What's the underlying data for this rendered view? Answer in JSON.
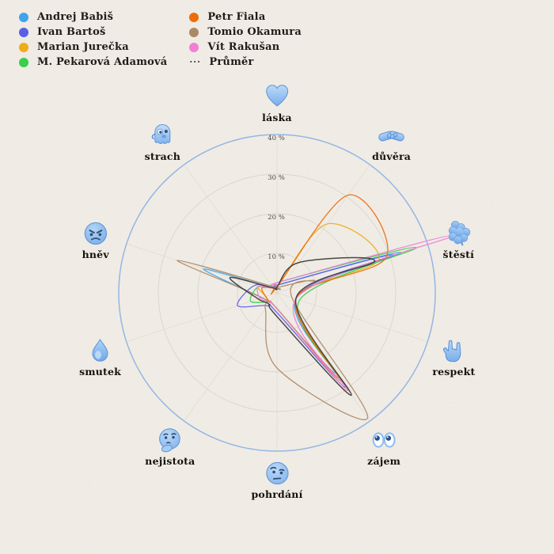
{
  "chart_data": {
    "type": "radar",
    "unit": "%",
    "radial_ticks": [
      10,
      20,
      30,
      40
    ],
    "rlim": [
      0,
      40
    ],
    "grid": "circular",
    "legend_position": "top-left",
    "axes": [
      "láska",
      "důvěra",
      "štěstí",
      "respekt",
      "zájem",
      "pohrdání",
      "nejistota",
      "smutek",
      "hněv",
      "strach"
    ],
    "axis_icons": [
      "blue-heart-icon",
      "handshake-icon",
      "four-leaf-clover-icon",
      "love-you-gesture-icon",
      "eyes-icon",
      "face-with-raised-eyebrow-icon",
      "thinking-face-icon",
      "droplet-icon",
      "angry-face-icon",
      "ghost-icon"
    ],
    "series": [
      {
        "name": "Andrej Babiš",
        "color": "#41a3e8",
        "dashed": false,
        "values": [
          1.5,
          3,
          33,
          5,
          25,
          4,
          3,
          4,
          19.5,
          1.5
        ]
      },
      {
        "name": "Ivan Bartoš",
        "color": "#5a5fe8",
        "dashed": false,
        "values": [
          1.5,
          3,
          31,
          5,
          29.5,
          5,
          4,
          10.5,
          6,
          1.5
        ]
      },
      {
        "name": "Marian Jurečka",
        "color": "#efac18",
        "dashed": false,
        "values": [
          1.5,
          21.5,
          27,
          5,
          26,
          4,
          3,
          3,
          5,
          1.5
        ]
      },
      {
        "name": "M. Pekarová Adamová",
        "color": "#3bce4a",
        "dashed": false,
        "values": [
          2,
          4,
          37,
          6,
          26.5,
          4,
          3,
          7,
          5,
          1.5
        ]
      },
      {
        "name": "Petr Fiala",
        "color": "#ee6b0b",
        "dashed": false,
        "values": [
          1.5,
          30.5,
          29,
          5,
          27.5,
          4,
          3,
          3,
          4,
          1.5
        ]
      },
      {
        "name": "Tomio Okamura",
        "color": "#ac8966",
        "dashed": false,
        "values": [
          1,
          2,
          10,
          4,
          39,
          19,
          5,
          4,
          26.5,
          2
        ]
      },
      {
        "name": "Vít Rakušan",
        "color": "#f07fd5",
        "dashed": false,
        "values": [
          2,
          4,
          47,
          5,
          30.5,
          4,
          3,
          4.5,
          5,
          1.5
        ]
      },
      {
        "name": "Průměr",
        "color": "#3c3a36",
        "dashed": true,
        "values": [
          1.5,
          9.5,
          26,
          5,
          32,
          6,
          3.5,
          5,
          12.5,
          1.5
        ]
      }
    ],
    "colors": {
      "background": "#f2eee7",
      "outer_ring": "#8fb3e4",
      "inner_rings": "#c9c4ba",
      "emoji_blue": "#8ec0f3"
    }
  }
}
